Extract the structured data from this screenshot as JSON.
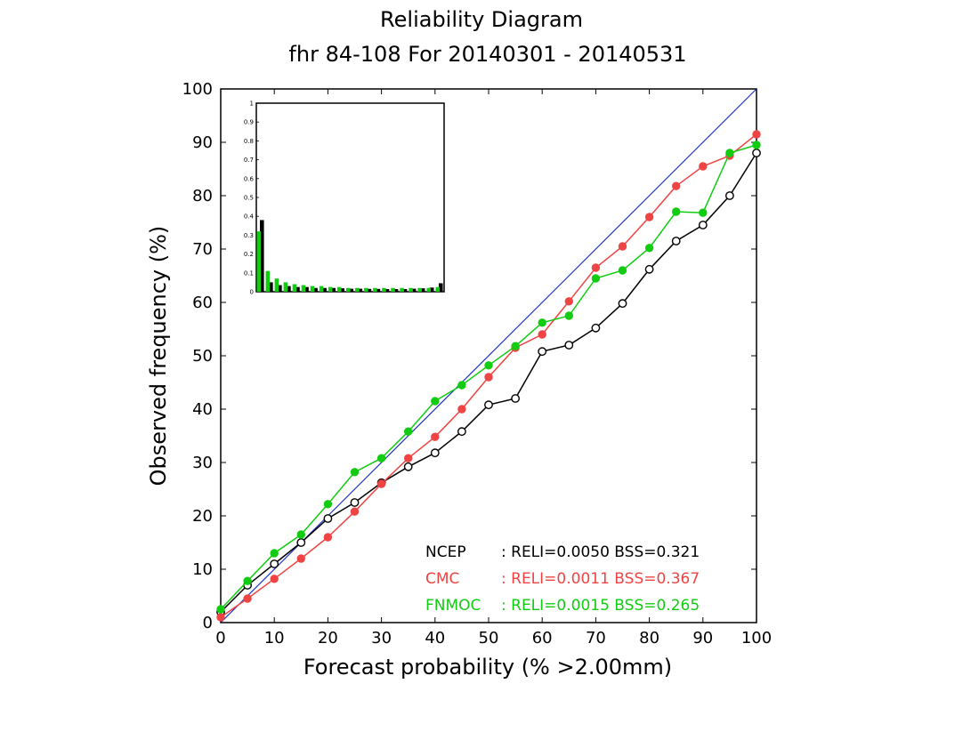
{
  "chart_data": {
    "type": "line",
    "title": "Reliability Diagram",
    "subtitle": "fhr 84-108 For 20140301 - 20140531",
    "xlabel": "Forecast probability (% >2.00mm)",
    "ylabel": "Observed frequency (%)",
    "xlim": [
      0,
      100
    ],
    "ylim": [
      0,
      100
    ],
    "xticks": [
      "0",
      "10",
      "20",
      "30",
      "40",
      "50",
      "60",
      "70",
      "80",
      "90",
      "100"
    ],
    "yticks": [
      "0",
      "10",
      "20",
      "30",
      "40",
      "50",
      "60",
      "70",
      "80",
      "90",
      "100"
    ],
    "grid": false,
    "diagonal_color": "#1f35c8",
    "x": [
      0,
      5,
      10,
      15,
      20,
      25,
      30,
      35,
      40,
      45,
      50,
      55,
      60,
      65,
      70,
      75,
      80,
      85,
      90,
      95,
      100
    ],
    "series": [
      {
        "name": "NCEP",
        "color": "#000000",
        "marker": "open-circle",
        "stats": ": RELI=0.0050  BSS=0.321",
        "values": [
          2,
          7,
          11,
          15,
          19.5,
          22.5,
          26.2,
          29.2,
          31.8,
          35.8,
          40.8,
          42,
          50.8,
          52,
          55.2,
          59.8,
          66.2,
          71.5,
          74.5,
          80,
          88
        ],
        "freq": [
          0.38,
          0.05,
          0.035,
          0.03,
          0.025,
          0.025,
          0.02,
          0.02,
          0.02,
          0.018,
          0.016,
          0.016,
          0.015,
          0.015,
          0.014,
          0.014,
          0.014,
          0.016,
          0.018,
          0.022,
          0.045
        ]
      },
      {
        "name": "CMC",
        "color": "#ee4444",
        "marker": "filled-circle",
        "stats": ": RELI=0.0011  BSS=0.367",
        "values": [
          1,
          4.5,
          8.2,
          12,
          16,
          20.8,
          26,
          30.8,
          34.8,
          40,
          46,
          51.5,
          54,
          60.2,
          66.5,
          70.5,
          76,
          81.8,
          85.5,
          87.5,
          91.5
        ],
        "freq": [
          0.4,
          0.05,
          0.035,
          0.03,
          0.025,
          0.025,
          0.02,
          0.02,
          0.02,
          0.018,
          0.016,
          0.016,
          0.015,
          0.015,
          0.014,
          0.014,
          0.014,
          0.016,
          0.018,
          0.022,
          0.04
        ]
      },
      {
        "name": "FNMOC",
        "color": "#11cc11",
        "marker": "filled-circle",
        "stats": ": RELI=0.0015  BSS=0.265",
        "values": [
          2.5,
          7.8,
          13,
          16.5,
          22.2,
          28.2,
          30.8,
          35.8,
          41.5,
          44.5,
          48.2,
          51.8,
          56.2,
          57.5,
          64.5,
          66,
          70.2,
          77,
          76.8,
          88,
          89.5
        ],
        "freq": [
          0.32,
          0.11,
          0.07,
          0.05,
          0.04,
          0.035,
          0.03,
          0.03,
          0.025,
          0.025,
          0.02,
          0.02,
          0.02,
          0.02,
          0.02,
          0.02,
          0.02,
          0.02,
          0.02,
          0.02,
          0.025
        ]
      }
    ],
    "inset": {
      "type": "bar",
      "ylim": [
        0,
        1
      ],
      "yticks": [
        "0",
        "0.1",
        "0.2",
        "0.3",
        "0.4",
        "0.5",
        "0.6",
        "0.7",
        "0.8",
        "0.9",
        "1"
      ]
    }
  }
}
